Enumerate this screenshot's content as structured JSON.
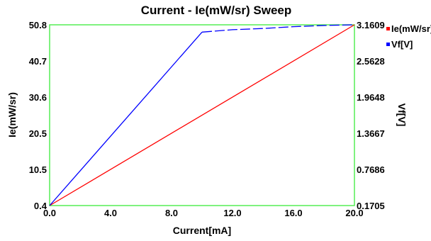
{
  "chart_data": {
    "type": "line",
    "title": "Current - Ie(mW/sr) Sweep",
    "xlabel": "Current[mA]",
    "ylabel_left": "Ie(mW/sr)",
    "ylabel_right": "Vf[V]",
    "xlim": [
      0.0,
      20.0
    ],
    "ylim_left": [
      0.4,
      50.8
    ],
    "ylim_right": [
      0.1705,
      3.1609
    ],
    "x_ticks": [
      "0.0",
      "4.0",
      "8.0",
      "12.0",
      "16.0",
      "20.0"
    ],
    "y_left_ticks": [
      "0.4",
      "10.5",
      "20.5",
      "30.6",
      "40.7",
      "50.8"
    ],
    "y_right_ticks": [
      "0.1705",
      "0.7686",
      "1.3667",
      "1.9648",
      "2.5628",
      "3.1609"
    ],
    "grid": false,
    "frame_color": "#55ee55",
    "legend": {
      "placement": "right",
      "entries": [
        {
          "label": "Ie(mW/sr)",
          "color": "#ff0000"
        },
        {
          "label": "Vf[V]",
          "color": "#0000ff"
        }
      ]
    },
    "series": [
      {
        "name": "Ie(mW/sr)",
        "axis": "left",
        "color": "#ff0000",
        "x": [
          0.0,
          20.0
        ],
        "y": [
          0.4,
          50.8
        ]
      },
      {
        "name": "Vf[V]",
        "axis": "right",
        "color": "#0000ff",
        "x": [
          0.0,
          10.0,
          12.0,
          14.0,
          16.0,
          18.0,
          20.0
        ],
        "y": [
          0.1705,
          3.04,
          3.08,
          3.1,
          3.13,
          3.15,
          3.1609
        ],
        "dashed_from_index": 1
      }
    ]
  }
}
